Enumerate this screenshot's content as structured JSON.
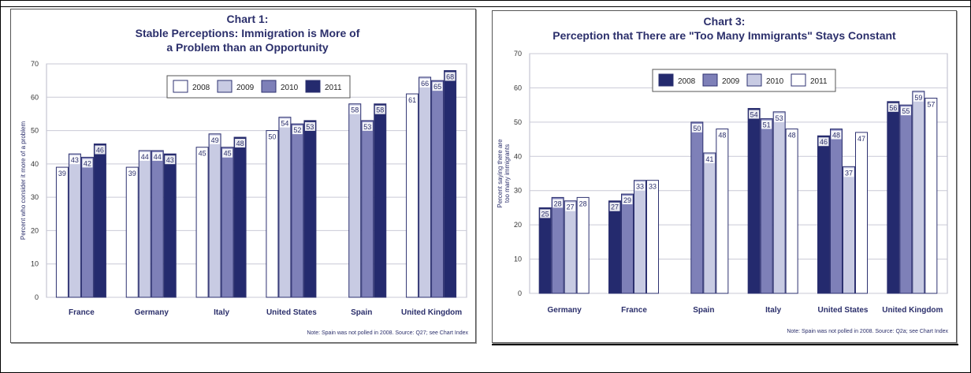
{
  "chart_data": [
    {
      "type": "bar",
      "title_line1": "Chart 1:",
      "title_line2": "Stable Perceptions: Immigration is More of",
      "title_line3": "a Problem than an Opportunity",
      "ylabel": "Percent who consider it more of a problem",
      "xlabel": "",
      "ylim": [
        0,
        70
      ],
      "yticks": [
        0,
        10,
        20,
        30,
        40,
        50,
        60,
        70
      ],
      "grid": true,
      "legend_position": "top-center",
      "categories": [
        "France",
        "Germany",
        "Italy",
        "United States",
        "Spain",
        "United Kingdom"
      ],
      "series": [
        {
          "name": "2008",
          "color": "#ffffff",
          "values": [
            39,
            39,
            45,
            50,
            null,
            61
          ]
        },
        {
          "name": "2009",
          "color": "#c8cbe3",
          "values": [
            43,
            44,
            49,
            54,
            58,
            66
          ]
        },
        {
          "name": "2010",
          "color": "#7e80b8",
          "values": [
            42,
            44,
            45,
            52,
            53,
            65
          ]
        },
        {
          "name": "2011",
          "color": "#242a6e",
          "values": [
            46,
            43,
            48,
            53,
            58,
            68
          ]
        }
      ],
      "note": "Note: Spain was not polled in 2008. Source: Q27; see Chart Index"
    },
    {
      "type": "bar",
      "title_line1": "Chart 3:",
      "title_line2": "Perception that There are \"Too Many Immigrants\" Stays Constant",
      "ylabel_line1": "Percent saying there are",
      "ylabel_line2": "too many immigrants",
      "xlabel": "",
      "ylim": [
        0,
        70
      ],
      "yticks": [
        0,
        10,
        20,
        30,
        40,
        50,
        60,
        70
      ],
      "grid": true,
      "legend_position": "top-left",
      "categories": [
        "Germany",
        "France",
        "Spain",
        "Italy",
        "United States",
        "United Kingdom"
      ],
      "series": [
        {
          "name": "2008",
          "color": "#242a6e",
          "values": [
            25,
            27,
            null,
            54,
            46,
            56
          ]
        },
        {
          "name": "2009",
          "color": "#7e80b8",
          "values": [
            28,
            29,
            50,
            51,
            48,
            55
          ]
        },
        {
          "name": "2010",
          "color": "#c8cbe3",
          "values": [
            27,
            33,
            41,
            53,
            37,
            59
          ]
        },
        {
          "name": "2011",
          "color": "#ffffff",
          "values": [
            28,
            33,
            48,
            48,
            47,
            57
          ]
        }
      ],
      "note": "Note: Spain was not polled in 2008. Source: Q2a; see Chart Index"
    }
  ]
}
